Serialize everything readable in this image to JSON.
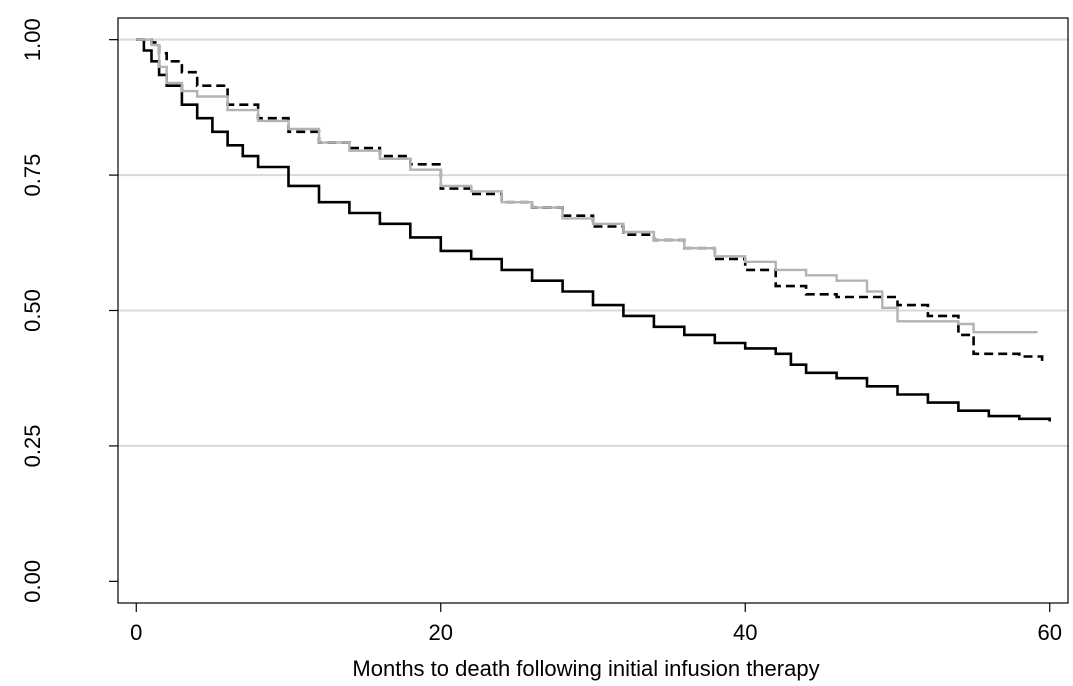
{
  "chart_data": {
    "type": "line",
    "title": "",
    "xlabel": "Months to death following initial infusion therapy",
    "ylabel": "",
    "xlim": [
      -1.2,
      61.2
    ],
    "ylim": [
      -0.04,
      1.04
    ],
    "x_ticks": [
      {
        "value": 0,
        "label": "0"
      },
      {
        "value": 20,
        "label": "20"
      },
      {
        "value": 40,
        "label": "40"
      },
      {
        "value": 60,
        "label": "60"
      }
    ],
    "y_ticks": [
      {
        "value": 0.0,
        "label": "0.00"
      },
      {
        "value": 0.25,
        "label": "0.25"
      },
      {
        "value": 0.5,
        "label": "0.50"
      },
      {
        "value": 0.75,
        "label": "0.75"
      },
      {
        "value": 1.0,
        "label": "1.00"
      }
    ],
    "grid": {
      "horizontal": true,
      "vertical": false,
      "color": "#d9d9d9"
    },
    "legend": "none",
    "series": [
      {
        "style": "solid",
        "color": "#000000",
        "x": [
          0,
          0.5,
          1,
          1.5,
          2,
          3,
          4,
          5,
          6,
          7,
          8,
          10,
          12,
          14,
          16,
          18,
          20,
          22,
          24,
          26,
          28,
          30,
          32,
          34,
          36,
          38,
          40,
          42,
          43,
          44,
          46,
          48,
          50,
          52,
          54,
          56,
          58,
          60
        ],
        "y": [
          1.0,
          0.98,
          0.96,
          0.935,
          0.915,
          0.88,
          0.855,
          0.83,
          0.805,
          0.785,
          0.765,
          0.73,
          0.7,
          0.68,
          0.66,
          0.635,
          0.61,
          0.595,
          0.575,
          0.555,
          0.535,
          0.51,
          0.49,
          0.47,
          0.455,
          0.44,
          0.43,
          0.42,
          0.4,
          0.385,
          0.375,
          0.36,
          0.345,
          0.33,
          0.315,
          0.305,
          0.3,
          0.295
        ]
      },
      {
        "style": "dashed",
        "color": "#000000",
        "x": [
          0,
          1,
          1.5,
          2,
          3,
          4,
          6,
          8,
          10,
          12,
          14,
          16,
          18,
          20,
          22,
          24,
          26,
          28,
          30,
          32,
          34,
          36,
          38,
          40,
          42,
          44,
          46,
          48,
          50,
          52,
          54,
          55,
          58,
          59.5
        ],
        "y": [
          1.0,
          0.995,
          0.975,
          0.96,
          0.94,
          0.915,
          0.88,
          0.855,
          0.83,
          0.81,
          0.8,
          0.785,
          0.77,
          0.725,
          0.715,
          0.7,
          0.69,
          0.675,
          0.655,
          0.64,
          0.63,
          0.615,
          0.595,
          0.575,
          0.545,
          0.53,
          0.525,
          0.525,
          0.51,
          0.49,
          0.455,
          0.42,
          0.415,
          0.4
        ]
      },
      {
        "style": "solid",
        "color": "#b3b3b3",
        "x": [
          0,
          1,
          1.5,
          2,
          3,
          4,
          6,
          8,
          10,
          12,
          14,
          16,
          18,
          20,
          22,
          24,
          26,
          28,
          30,
          32,
          34,
          36,
          38,
          40,
          42,
          44,
          46,
          48,
          49,
          50,
          52,
          54,
          55,
          57,
          59.2
        ],
        "y": [
          1.0,
          0.99,
          0.95,
          0.92,
          0.905,
          0.895,
          0.87,
          0.85,
          0.835,
          0.81,
          0.795,
          0.78,
          0.76,
          0.73,
          0.72,
          0.7,
          0.69,
          0.67,
          0.66,
          0.645,
          0.63,
          0.615,
          0.6,
          0.59,
          0.575,
          0.565,
          0.555,
          0.535,
          0.505,
          0.48,
          0.48,
          0.475,
          0.46,
          0.46,
          0.46
        ]
      }
    ]
  }
}
